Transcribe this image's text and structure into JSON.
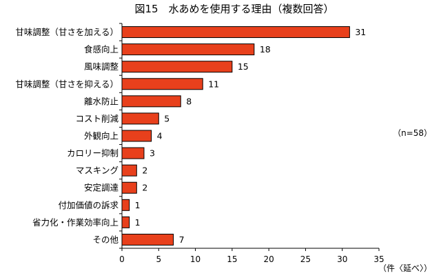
{
  "chart_data": {
    "type": "bar",
    "orientation": "horizontal",
    "title": "図15　水あめを使用する理由（複数回答）",
    "categories": [
      "甘味調整（甘さを加える）",
      "食感向上",
      "風味調整",
      "甘味調整（甘さを抑える）",
      "離水防止",
      "コスト削減",
      "外観向上",
      "カロリー抑制",
      "マスキング",
      "安定調達",
      "付加価値の訴求",
      "省力化・作業効率向上",
      "その他"
    ],
    "values": [
      31,
      18,
      15,
      11,
      8,
      5,
      4,
      3,
      2,
      2,
      1,
      1,
      7
    ],
    "xlim": [
      0,
      35
    ],
    "xticks": [
      "0",
      "5",
      "10",
      "15",
      "20",
      "25",
      "30",
      "35"
    ],
    "xunit": "（件〈延べ〉）",
    "annotation": "（n=58）",
    "bar_color": "#e8401c",
    "bar_edge_color": "#000000",
    "grid": false
  }
}
